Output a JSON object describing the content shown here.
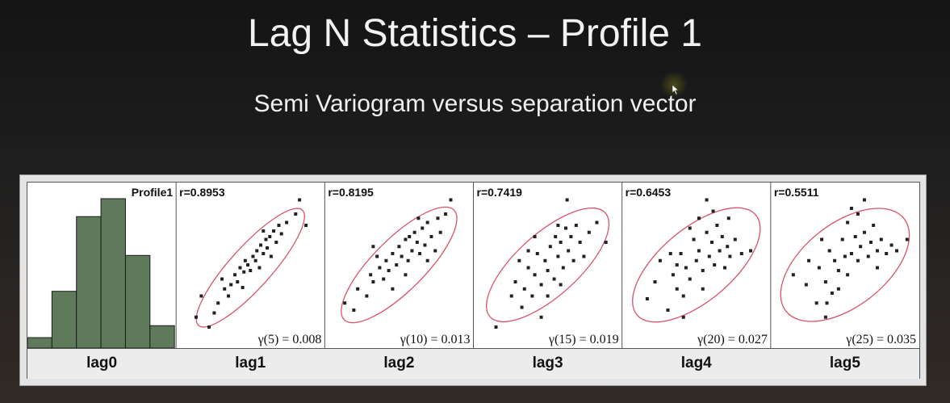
{
  "slide": {
    "title": "Lag N Statistics – Profile 1",
    "subtitle": "Semi Variogram versus separation vector"
  },
  "colors": {
    "histogram_fill": "#5e7a5a",
    "ellipse_stroke": "#d9536a",
    "point_fill": "#222222"
  },
  "chart_data": [
    {
      "type": "bar",
      "title": "Profile1",
      "xlabel": "lag0",
      "categories": [
        "1",
        "2",
        "3",
        "4",
        "5",
        "6"
      ],
      "values": [
        0.07,
        0.38,
        0.88,
        1.0,
        0.62,
        0.15
      ]
    },
    {
      "type": "scatter",
      "xlabel": "lag1",
      "r_text": "r=0.8953",
      "gamma_text": "γ(5) = 0.008",
      "ellipse": {
        "cx": 0.5,
        "cy": 0.5,
        "rx": 0.6,
        "ry": 0.16,
        "angle": -48
      },
      "points": [
        [
          0.08,
          0.15
        ],
        [
          0.12,
          0.3
        ],
        [
          0.22,
          0.18
        ],
        [
          0.28,
          0.42
        ],
        [
          0.3,
          0.35
        ],
        [
          0.35,
          0.38
        ],
        [
          0.38,
          0.45
        ],
        [
          0.4,
          0.4
        ],
        [
          0.42,
          0.5
        ],
        [
          0.45,
          0.47
        ],
        [
          0.46,
          0.55
        ],
        [
          0.48,
          0.52
        ],
        [
          0.5,
          0.48
        ],
        [
          0.52,
          0.58
        ],
        [
          0.54,
          0.55
        ],
        [
          0.55,
          0.62
        ],
        [
          0.57,
          0.5
        ],
        [
          0.58,
          0.66
        ],
        [
          0.6,
          0.6
        ],
        [
          0.62,
          0.7
        ],
        [
          0.63,
          0.64
        ],
        [
          0.65,
          0.72
        ],
        [
          0.66,
          0.58
        ],
        [
          0.68,
          0.76
        ],
        [
          0.7,
          0.68
        ],
        [
          0.72,
          0.8
        ],
        [
          0.74,
          0.74
        ],
        [
          0.78,
          0.82
        ],
        [
          0.85,
          0.88
        ],
        [
          0.88,
          0.98
        ],
        [
          0.93,
          0.8
        ],
        [
          0.25,
          0.25
        ],
        [
          0.33,
          0.3
        ],
        [
          0.44,
          0.36
        ],
        [
          0.18,
          0.08
        ],
        [
          0.6,
          0.76
        ]
      ]
    },
    {
      "type": "scatter",
      "xlabel": "lag2",
      "r_text": "r=0.8195",
      "gamma_text": "γ(10) = 0.013",
      "ellipse": {
        "cx": 0.5,
        "cy": 0.52,
        "rx": 0.6,
        "ry": 0.2,
        "angle": -45
      },
      "points": [
        [
          0.08,
          0.25
        ],
        [
          0.15,
          0.2
        ],
        [
          0.18,
          0.35
        ],
        [
          0.25,
          0.3
        ],
        [
          0.28,
          0.45
        ],
        [
          0.3,
          0.4
        ],
        [
          0.35,
          0.5
        ],
        [
          0.38,
          0.42
        ],
        [
          0.4,
          0.55
        ],
        [
          0.42,
          0.48
        ],
        [
          0.45,
          0.6
        ],
        [
          0.48,
          0.52
        ],
        [
          0.5,
          0.65
        ],
        [
          0.52,
          0.58
        ],
        [
          0.55,
          0.7
        ],
        [
          0.57,
          0.55
        ],
        [
          0.58,
          0.72
        ],
        [
          0.6,
          0.62
        ],
        [
          0.62,
          0.75
        ],
        [
          0.64,
          0.68
        ],
        [
          0.66,
          0.6
        ],
        [
          0.68,
          0.78
        ],
        [
          0.7,
          0.66
        ],
        [
          0.72,
          0.82
        ],
        [
          0.75,
          0.72
        ],
        [
          0.78,
          0.62
        ],
        [
          0.8,
          0.85
        ],
        [
          0.82,
          0.75
        ],
        [
          0.86,
          0.88
        ],
        [
          0.9,
          0.98
        ],
        [
          0.33,
          0.58
        ],
        [
          0.45,
          0.35
        ],
        [
          0.55,
          0.45
        ],
        [
          0.65,
          0.85
        ],
        [
          0.3,
          0.65
        ],
        [
          0.72,
          0.55
        ]
      ]
    },
    {
      "type": "scatter",
      "xlabel": "lag3",
      "r_text": "r=0.7419",
      "gamma_text": "γ(15) = 0.019",
      "ellipse": {
        "cx": 0.5,
        "cy": 0.52,
        "rx": 0.6,
        "ry": 0.24,
        "angle": -42
      },
      "points": [
        [
          0.1,
          0.08
        ],
        [
          0.22,
          0.3
        ],
        [
          0.25,
          0.4
        ],
        [
          0.3,
          0.22
        ],
        [
          0.32,
          0.35
        ],
        [
          0.35,
          0.5
        ],
        [
          0.38,
          0.3
        ],
        [
          0.4,
          0.45
        ],
        [
          0.42,
          0.6
        ],
        [
          0.45,
          0.38
        ],
        [
          0.48,
          0.55
        ],
        [
          0.5,
          0.48
        ],
        [
          0.52,
          0.65
        ],
        [
          0.55,
          0.42
        ],
        [
          0.56,
          0.72
        ],
        [
          0.58,
          0.58
        ],
        [
          0.6,
          0.68
        ],
        [
          0.62,
          0.5
        ],
        [
          0.64,
          0.78
        ],
        [
          0.66,
          0.62
        ],
        [
          0.68,
          0.72
        ],
        [
          0.7,
          0.55
        ],
        [
          0.72,
          0.8
        ],
        [
          0.75,
          0.68
        ],
        [
          0.78,
          0.58
        ],
        [
          0.82,
          0.75
        ],
        [
          0.88,
          0.82
        ],
        [
          0.65,
          0.98
        ],
        [
          0.95,
          0.68
        ],
        [
          0.35,
          0.62
        ],
        [
          0.45,
          0.15
        ],
        [
          0.28,
          0.55
        ],
        [
          0.58,
          0.8
        ],
        [
          0.5,
          0.3
        ],
        [
          0.4,
          0.72
        ],
        [
          0.6,
          0.38
        ]
      ]
    },
    {
      "type": "scatter",
      "xlabel": "lag4",
      "r_text": "r=0.6453",
      "gamma_text": "γ(20) = 0.027",
      "ellipse": {
        "cx": 0.5,
        "cy": 0.52,
        "rx": 0.6,
        "ry": 0.28,
        "angle": -40
      },
      "points": [
        [
          0.12,
          0.28
        ],
        [
          0.18,
          0.4
        ],
        [
          0.22,
          0.55
        ],
        [
          0.28,
          0.2
        ],
        [
          0.32,
          0.45
        ],
        [
          0.35,
          0.35
        ],
        [
          0.38,
          0.6
        ],
        [
          0.4,
          0.3
        ],
        [
          0.42,
          0.5
        ],
        [
          0.45,
          0.42
        ],
        [
          0.48,
          0.7
        ],
        [
          0.5,
          0.55
        ],
        [
          0.52,
          0.62
        ],
        [
          0.55,
          0.48
        ],
        [
          0.58,
          0.75
        ],
        [
          0.6,
          0.58
        ],
        [
          0.62,
          0.68
        ],
        [
          0.64,
          0.52
        ],
        [
          0.66,
          0.8
        ],
        [
          0.68,
          0.62
        ],
        [
          0.7,
          0.72
        ],
        [
          0.72,
          0.5
        ],
        [
          0.74,
          0.65
        ],
        [
          0.76,
          0.58
        ],
        [
          0.8,
          0.7
        ],
        [
          0.85,
          0.6
        ],
        [
          0.92,
          0.62
        ],
        [
          0.58,
          0.98
        ],
        [
          0.3,
          0.6
        ],
        [
          0.4,
          0.15
        ],
        [
          0.52,
          0.85
        ],
        [
          0.63,
          0.9
        ],
        [
          0.45,
          0.78
        ],
        [
          0.75,
          0.85
        ],
        [
          0.35,
          0.52
        ],
        [
          0.55,
          0.35
        ]
      ]
    },
    {
      "type": "scatter",
      "xlabel": "lag5",
      "r_text": "r=0.5511",
      "gamma_text": "γ(25) = 0.035",
      "ellipse": {
        "cx": 0.5,
        "cy": 0.52,
        "rx": 0.58,
        "ry": 0.32,
        "angle": -38
      },
      "points": [
        [
          0.1,
          0.45
        ],
        [
          0.2,
          0.38
        ],
        [
          0.22,
          0.55
        ],
        [
          0.28,
          0.25
        ],
        [
          0.3,
          0.5
        ],
        [
          0.35,
          0.4
        ],
        [
          0.38,
          0.62
        ],
        [
          0.4,
          0.32
        ],
        [
          0.42,
          0.55
        ],
        [
          0.45,
          0.48
        ],
        [
          0.48,
          0.7
        ],
        [
          0.5,
          0.58
        ],
        [
          0.52,
          0.82
        ],
        [
          0.55,
          0.6
        ],
        [
          0.58,
          0.72
        ],
        [
          0.6,
          0.55
        ],
        [
          0.62,
          0.65
        ],
        [
          0.65,
          0.75
        ],
        [
          0.68,
          0.58
        ],
        [
          0.7,
          0.68
        ],
        [
          0.72,
          0.8
        ],
        [
          0.75,
          0.62
        ],
        [
          0.78,
          0.7
        ],
        [
          0.82,
          0.6
        ],
        [
          0.86,
          0.66
        ],
        [
          0.9,
          0.62
        ],
        [
          0.98,
          0.7
        ],
        [
          0.35,
          0.15
        ],
        [
          0.36,
          0.25
        ],
        [
          0.6,
          0.88
        ],
        [
          0.55,
          0.92
        ],
        [
          0.65,
          0.98
        ],
        [
          0.45,
          0.35
        ],
        [
          0.32,
          0.7
        ],
        [
          0.75,
          0.5
        ],
        [
          0.52,
          0.45
        ]
      ]
    }
  ]
}
